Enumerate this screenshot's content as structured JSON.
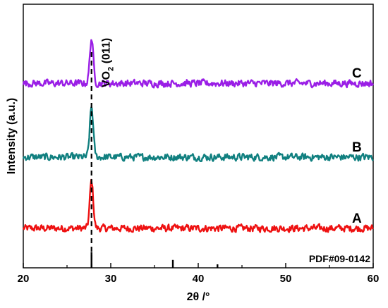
{
  "chart_data": {
    "type": "line",
    "title": "",
    "xlabel": "2θ /°",
    "ylabel": "Intensity (a.u.)",
    "xlim": [
      20,
      60
    ],
    "x_ticks": [
      "20",
      "30",
      "40",
      "50",
      "60"
    ],
    "grid": false,
    "peak_annotation": {
      "position": 27.8,
      "label_main": "VO",
      "label_sub": "2",
      "label_rest": " (011)"
    },
    "reference": {
      "name": "PDF#09-0142",
      "color": "#000000",
      "peaks": [
        {
          "x": 27.8,
          "intensity": 1.0
        },
        {
          "x": 37.1,
          "intensity": 0.5
        },
        {
          "x": 42.2,
          "intensity": 0.22
        }
      ]
    },
    "series": [
      {
        "name": "A",
        "color": "#ee1111",
        "baseline": 0.15,
        "noise": 0.012,
        "peaks": [
          {
            "x": 27.8,
            "height": 0.18,
            "width": 0.28
          }
        ]
      },
      {
        "name": "B",
        "color": "#118080",
        "baseline": 0.42,
        "noise": 0.012,
        "peaks": [
          {
            "x": 27.8,
            "height": 0.19,
            "width": 0.28
          }
        ]
      },
      {
        "name": "C",
        "color": "#9a1ee6",
        "baseline": 0.7,
        "noise": 0.012,
        "peaks": [
          {
            "x": 27.8,
            "height": 0.17,
            "width": 0.28
          }
        ]
      }
    ]
  }
}
